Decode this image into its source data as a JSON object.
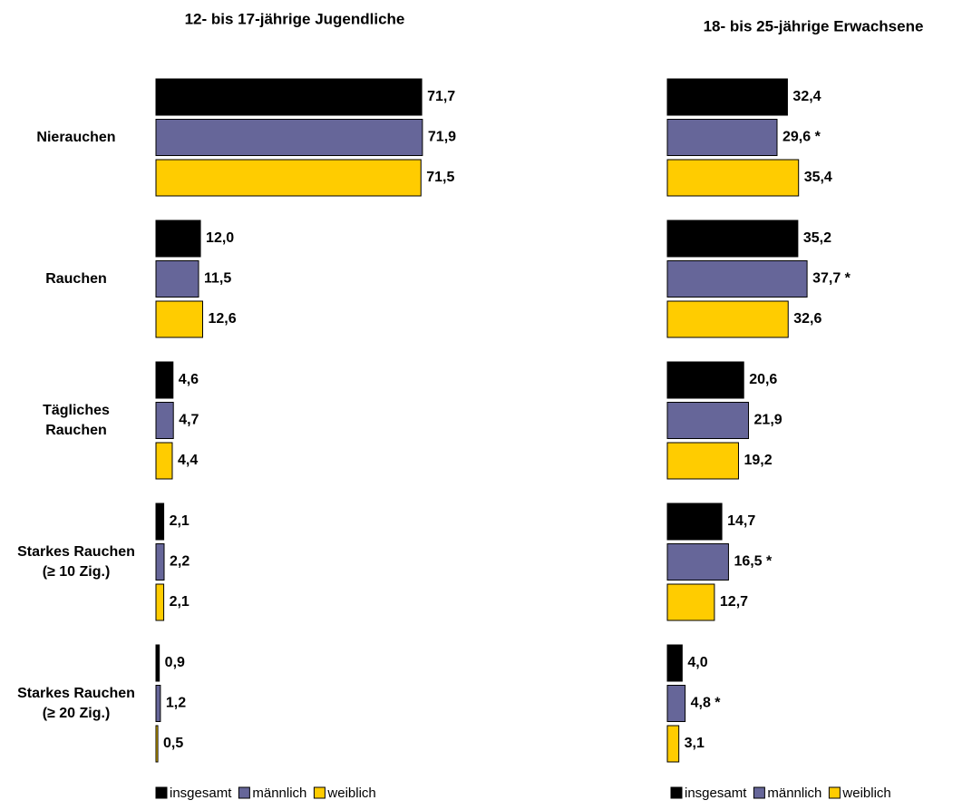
{
  "chart_data": [
    {
      "type": "bar",
      "orientation": "horizontal",
      "title": "12- bis 17-jährige Jugendliche",
      "categories": [
        "Nierauchen",
        "Rauchen",
        "Tägliches Rauchen",
        "Starkes Rauchen (≥ 10 Zig.)",
        "Starkes Rauchen (≥ 20 Zig.)"
      ],
      "xlim": [
        0,
        80
      ],
      "legend": "bottom",
      "series": [
        {
          "name": "insgesamt",
          "color": "#000000",
          "values": [
            71.7,
            12.0,
            4.6,
            2.1,
            0.9
          ],
          "value_labels": [
            "71,7",
            "12,0",
            "4,6",
            "2,1",
            "0,9"
          ]
        },
        {
          "name": "männlich",
          "color": "#666699",
          "values": [
            71.9,
            11.5,
            4.7,
            2.2,
            1.2
          ],
          "value_labels": [
            "71,9",
            "11,5",
            "4,7",
            "2,2",
            "1,2"
          ]
        },
        {
          "name": "weiblich",
          "color": "#ffcc00",
          "values": [
            71.5,
            12.6,
            4.4,
            2.1,
            0.5
          ],
          "value_labels": [
            "71,5",
            "12,6",
            "4,4",
            "2,1",
            "0,5"
          ]
        }
      ]
    },
    {
      "type": "bar",
      "orientation": "horizontal",
      "title": "18- bis 25-jährige Erwachsene",
      "xlim": [
        0,
        80
      ],
      "legend": "bottom",
      "series": [
        {
          "name": "insgesamt",
          "color": "#000000",
          "values": [
            32.4,
            35.2,
            20.6,
            14.7,
            4.0
          ],
          "value_labels": [
            "32,4",
            "35,2",
            "20,6",
            "14,7",
            "4,0"
          ]
        },
        {
          "name": "männlich",
          "color": "#666699",
          "values": [
            29.6,
            37.7,
            21.9,
            16.5,
            4.8
          ],
          "value_labels": [
            "29,6 *",
            "37,7 *",
            "21,9",
            "16,5 *",
            "4,8 *"
          ]
        },
        {
          "name": "weiblich",
          "color": "#ffcc00",
          "values": [
            35.4,
            32.6,
            19.2,
            12.7,
            3.1
          ],
          "value_labels": [
            "35,4",
            "32,6",
            "19,2",
            "12,7",
            "3,1"
          ]
        }
      ]
    }
  ]
}
